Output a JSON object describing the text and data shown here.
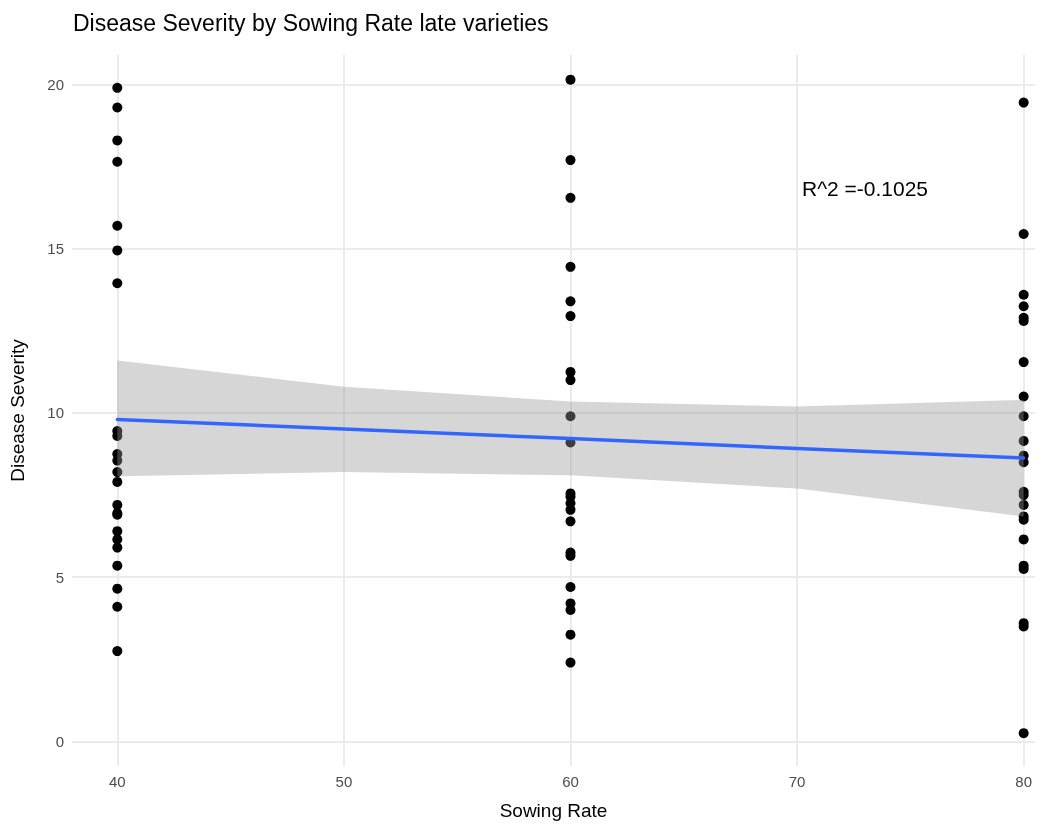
{
  "chart_data": {
    "type": "scatter",
    "title": "Disease Severity by Sowing Rate late varieties",
    "xlabel": "Sowing Rate",
    "ylabel": "Disease Severity",
    "xlim": [
      38,
      80.5
    ],
    "xticks": [
      40,
      50,
      60,
      70,
      80
    ],
    "ylim": [
      -0.75,
      20.9
    ],
    "yticks": [
      0,
      5,
      10,
      15,
      20
    ],
    "grid": true,
    "annotations": [
      "R^2 =-0.1025"
    ],
    "series": [
      {
        "color": "#000000",
        "marker": "circle",
        "x": [
          40,
          40,
          40,
          40,
          40,
          40,
          40,
          40,
          40,
          40,
          40,
          40,
          40,
          40,
          40,
          40,
          40,
          40,
          40,
          40,
          40,
          40,
          40,
          60,
          60,
          60,
          60,
          60,
          60,
          60,
          60,
          60,
          60,
          60,
          60,
          60,
          60,
          60,
          60,
          60,
          60,
          60,
          60,
          60,
          60,
          80,
          80,
          80,
          80,
          80,
          80,
          80,
          80,
          80,
          80,
          80,
          80,
          80,
          80,
          80,
          80,
          80,
          80,
          80,
          80,
          80,
          80,
          80
        ],
        "values": [
          19.9,
          19.3,
          18.3,
          17.65,
          15.7,
          14.95,
          13.95,
          9.45,
          9.3,
          8.75,
          8.55,
          8.2,
          7.9,
          7.2,
          6.95,
          6.9,
          6.4,
          6.15,
          5.9,
          5.35,
          4.65,
          4.1,
          2.75,
          20.15,
          17.7,
          16.55,
          14.45,
          13.4,
          12.95,
          11.25,
          11.0,
          9.9,
          9.1,
          7.55,
          7.45,
          7.25,
          7.05,
          6.7,
          5.75,
          5.65,
          4.7,
          4.2,
          4.0,
          3.25,
          2.4,
          19.45,
          15.45,
          13.6,
          13.25,
          12.9,
          12.8,
          11.55,
          10.5,
          9.9,
          9.15,
          8.7,
          8.5,
          7.6,
          7.5,
          7.2,
          6.85,
          6.75,
          6.15,
          5.35,
          5.25,
          3.6,
          3.5,
          0.25
        ]
      },
      {
        "type": "line",
        "color": "#3366ff",
        "x": [
          40,
          50,
          60,
          70,
          80
        ],
        "values": [
          9.8,
          9.51,
          9.22,
          8.92,
          8.63
        ],
        "lower": [
          8.07,
          8.2,
          8.1,
          7.7,
          6.85
        ],
        "upper": [
          11.6,
          10.8,
          10.35,
          10.2,
          10.4
        ]
      }
    ]
  }
}
